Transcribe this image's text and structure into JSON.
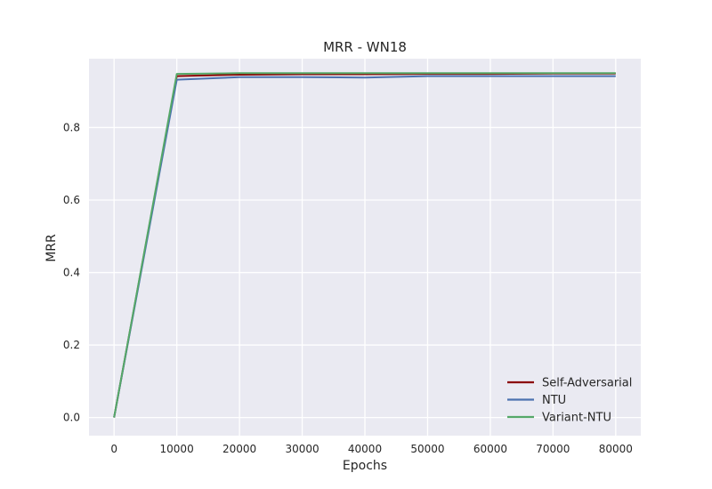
{
  "chart_data": {
    "type": "line",
    "title": "MRR - WN18",
    "xlabel": "Epochs",
    "ylabel": "MRR",
    "xlim": [
      -4000,
      84000
    ],
    "ylim": [
      -0.05,
      0.99
    ],
    "xticks": [
      0,
      10000,
      20000,
      30000,
      40000,
      50000,
      60000,
      70000,
      80000
    ],
    "xtick_labels": [
      "0",
      "10000",
      "20000",
      "30000",
      "40000",
      "50000",
      "60000",
      "70000",
      "80000"
    ],
    "yticks": [
      0.0,
      0.2,
      0.4,
      0.6,
      0.8
    ],
    "ytick_labels": [
      "0.0",
      "0.2",
      "0.4",
      "0.6",
      "0.8"
    ],
    "grid": true,
    "legend_position": "bottom-right",
    "x": [
      0,
      10000,
      20000,
      30000,
      40000,
      50000,
      60000,
      70000,
      80000
    ],
    "series": [
      {
        "name": "Self-Adversarial",
        "color": "#8b0000",
        "values": [
          0.0,
          0.942,
          0.946,
          0.947,
          0.947,
          0.948,
          0.948,
          0.949,
          0.949
        ]
      },
      {
        "name": "NTU",
        "color": "#4c72b0",
        "values": [
          0.0,
          0.932,
          0.939,
          0.939,
          0.938,
          0.942,
          0.942,
          0.942,
          0.942
        ]
      },
      {
        "name": "Variant-NTU",
        "color": "#55a868",
        "values": [
          0.0,
          0.948,
          0.95,
          0.95,
          0.95,
          0.95,
          0.95,
          0.95,
          0.95
        ]
      }
    ]
  }
}
